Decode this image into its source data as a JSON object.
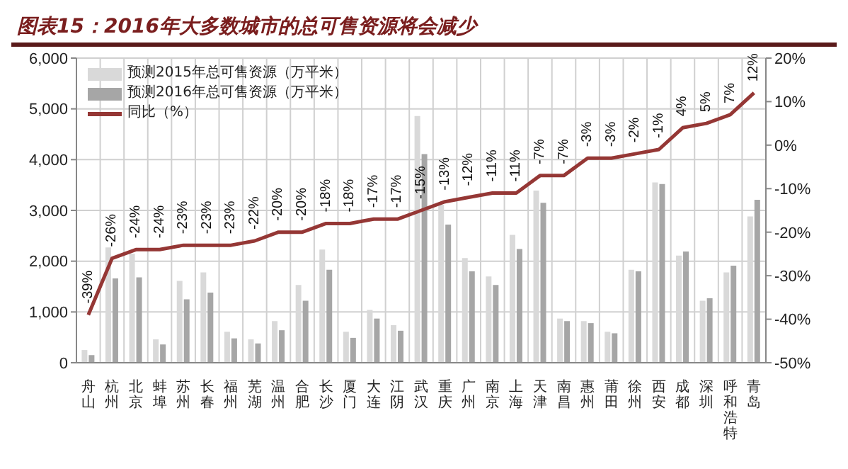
{
  "chart_data": {
    "type": "bar",
    "title": "图表15：2016年大多数城市的总可售资源将会减少",
    "categories": [
      "舟山",
      "杭州",
      "北京",
      "蚌埠",
      "苏州",
      "长春",
      "福州",
      "芜湖",
      "温州",
      "合肥",
      "长沙",
      "厦门",
      "大连",
      "江阴",
      "武汉",
      "重庆",
      "广州",
      "南京",
      "上海",
      "天津",
      "南昌",
      "惠州",
      "莆田",
      "徐州",
      "西安",
      "成都",
      "深圳",
      "呼和浩特",
      "青岛"
    ],
    "series": [
      {
        "name": "预测2015年总可售资源（万平米）",
        "color": "#d9d9d9",
        "values": [
          250,
          2270,
          2150,
          460,
          1610,
          1780,
          610,
          460,
          820,
          1530,
          2230,
          610,
          1040,
          740,
          4860,
          3110,
          2060,
          1700,
          2520,
          3390,
          870,
          820,
          610,
          1830,
          3550,
          2110,
          1220,
          1780,
          2880
        ]
      },
      {
        "name": "预测2016年总可售资源（万平米）",
        "color": "#a6a6a6",
        "values": [
          150,
          1660,
          1680,
          360,
          1250,
          1380,
          480,
          380,
          640,
          1220,
          1830,
          490,
          870,
          630,
          4110,
          2720,
          1800,
          1530,
          2240,
          3150,
          820,
          780,
          580,
          1800,
          3520,
          2190,
          1270,
          1910,
          3210
        ]
      },
      {
        "name": "同比（%）",
        "type": "line",
        "axis": "y2",
        "color": "#953735",
        "values": [
          -39,
          -26,
          -24,
          -24,
          -23,
          -23,
          -23,
          -22,
          -20,
          -20,
          -18,
          -18,
          -17,
          -17,
          -15,
          -13,
          -12,
          -11,
          -11,
          -7,
          -7,
          -3,
          -3,
          -2,
          -1,
          4,
          5,
          7,
          12
        ],
        "value_labels": [
          "-39%",
          "-26%",
          "-24%",
          "-24%",
          "-23%",
          "-23%",
          "-23%",
          "-22%",
          "-20%",
          "-20%",
          "-18%",
          "-18%",
          "-17%",
          "-17%",
          "-15%",
          "-13%",
          "-12%",
          "-11%",
          "-11%",
          "-7%",
          "-7%",
          "-3%",
          "-3%",
          "-2%",
          "-1%",
          "4%",
          "5%",
          "7%",
          "12%"
        ]
      }
    ],
    "ylim": [
      0,
      6000
    ],
    "yticks": [
      0,
      {
        "value": 1000,
        "label": "1,000"
      },
      {
        "value": 2000,
        "label": "2,000"
      },
      {
        "value": 3000,
        "label": "3,000"
      },
      {
        "value": 4000,
        "label": "4,000"
      },
      {
        "value": 5000,
        "label": "5,000"
      },
      {
        "value": 6000,
        "label": "6,000"
      }
    ],
    "y2lim": [
      -50,
      20
    ],
    "y2ticks": [
      {
        "value": -50,
        "label": "-50%"
      },
      {
        "value": -40,
        "label": "-40%"
      },
      {
        "value": -30,
        "label": "-30%"
      },
      {
        "value": -20,
        "label": "-20%"
      },
      {
        "value": -10,
        "label": "-10%"
      },
      {
        "value": 0,
        "label": "0%"
      },
      {
        "value": 10,
        "label": "10%"
      },
      {
        "value": 20,
        "label": "20%"
      }
    ],
    "grid": true,
    "legend": "top left",
    "marker": "none",
    "line_style": "solid"
  }
}
